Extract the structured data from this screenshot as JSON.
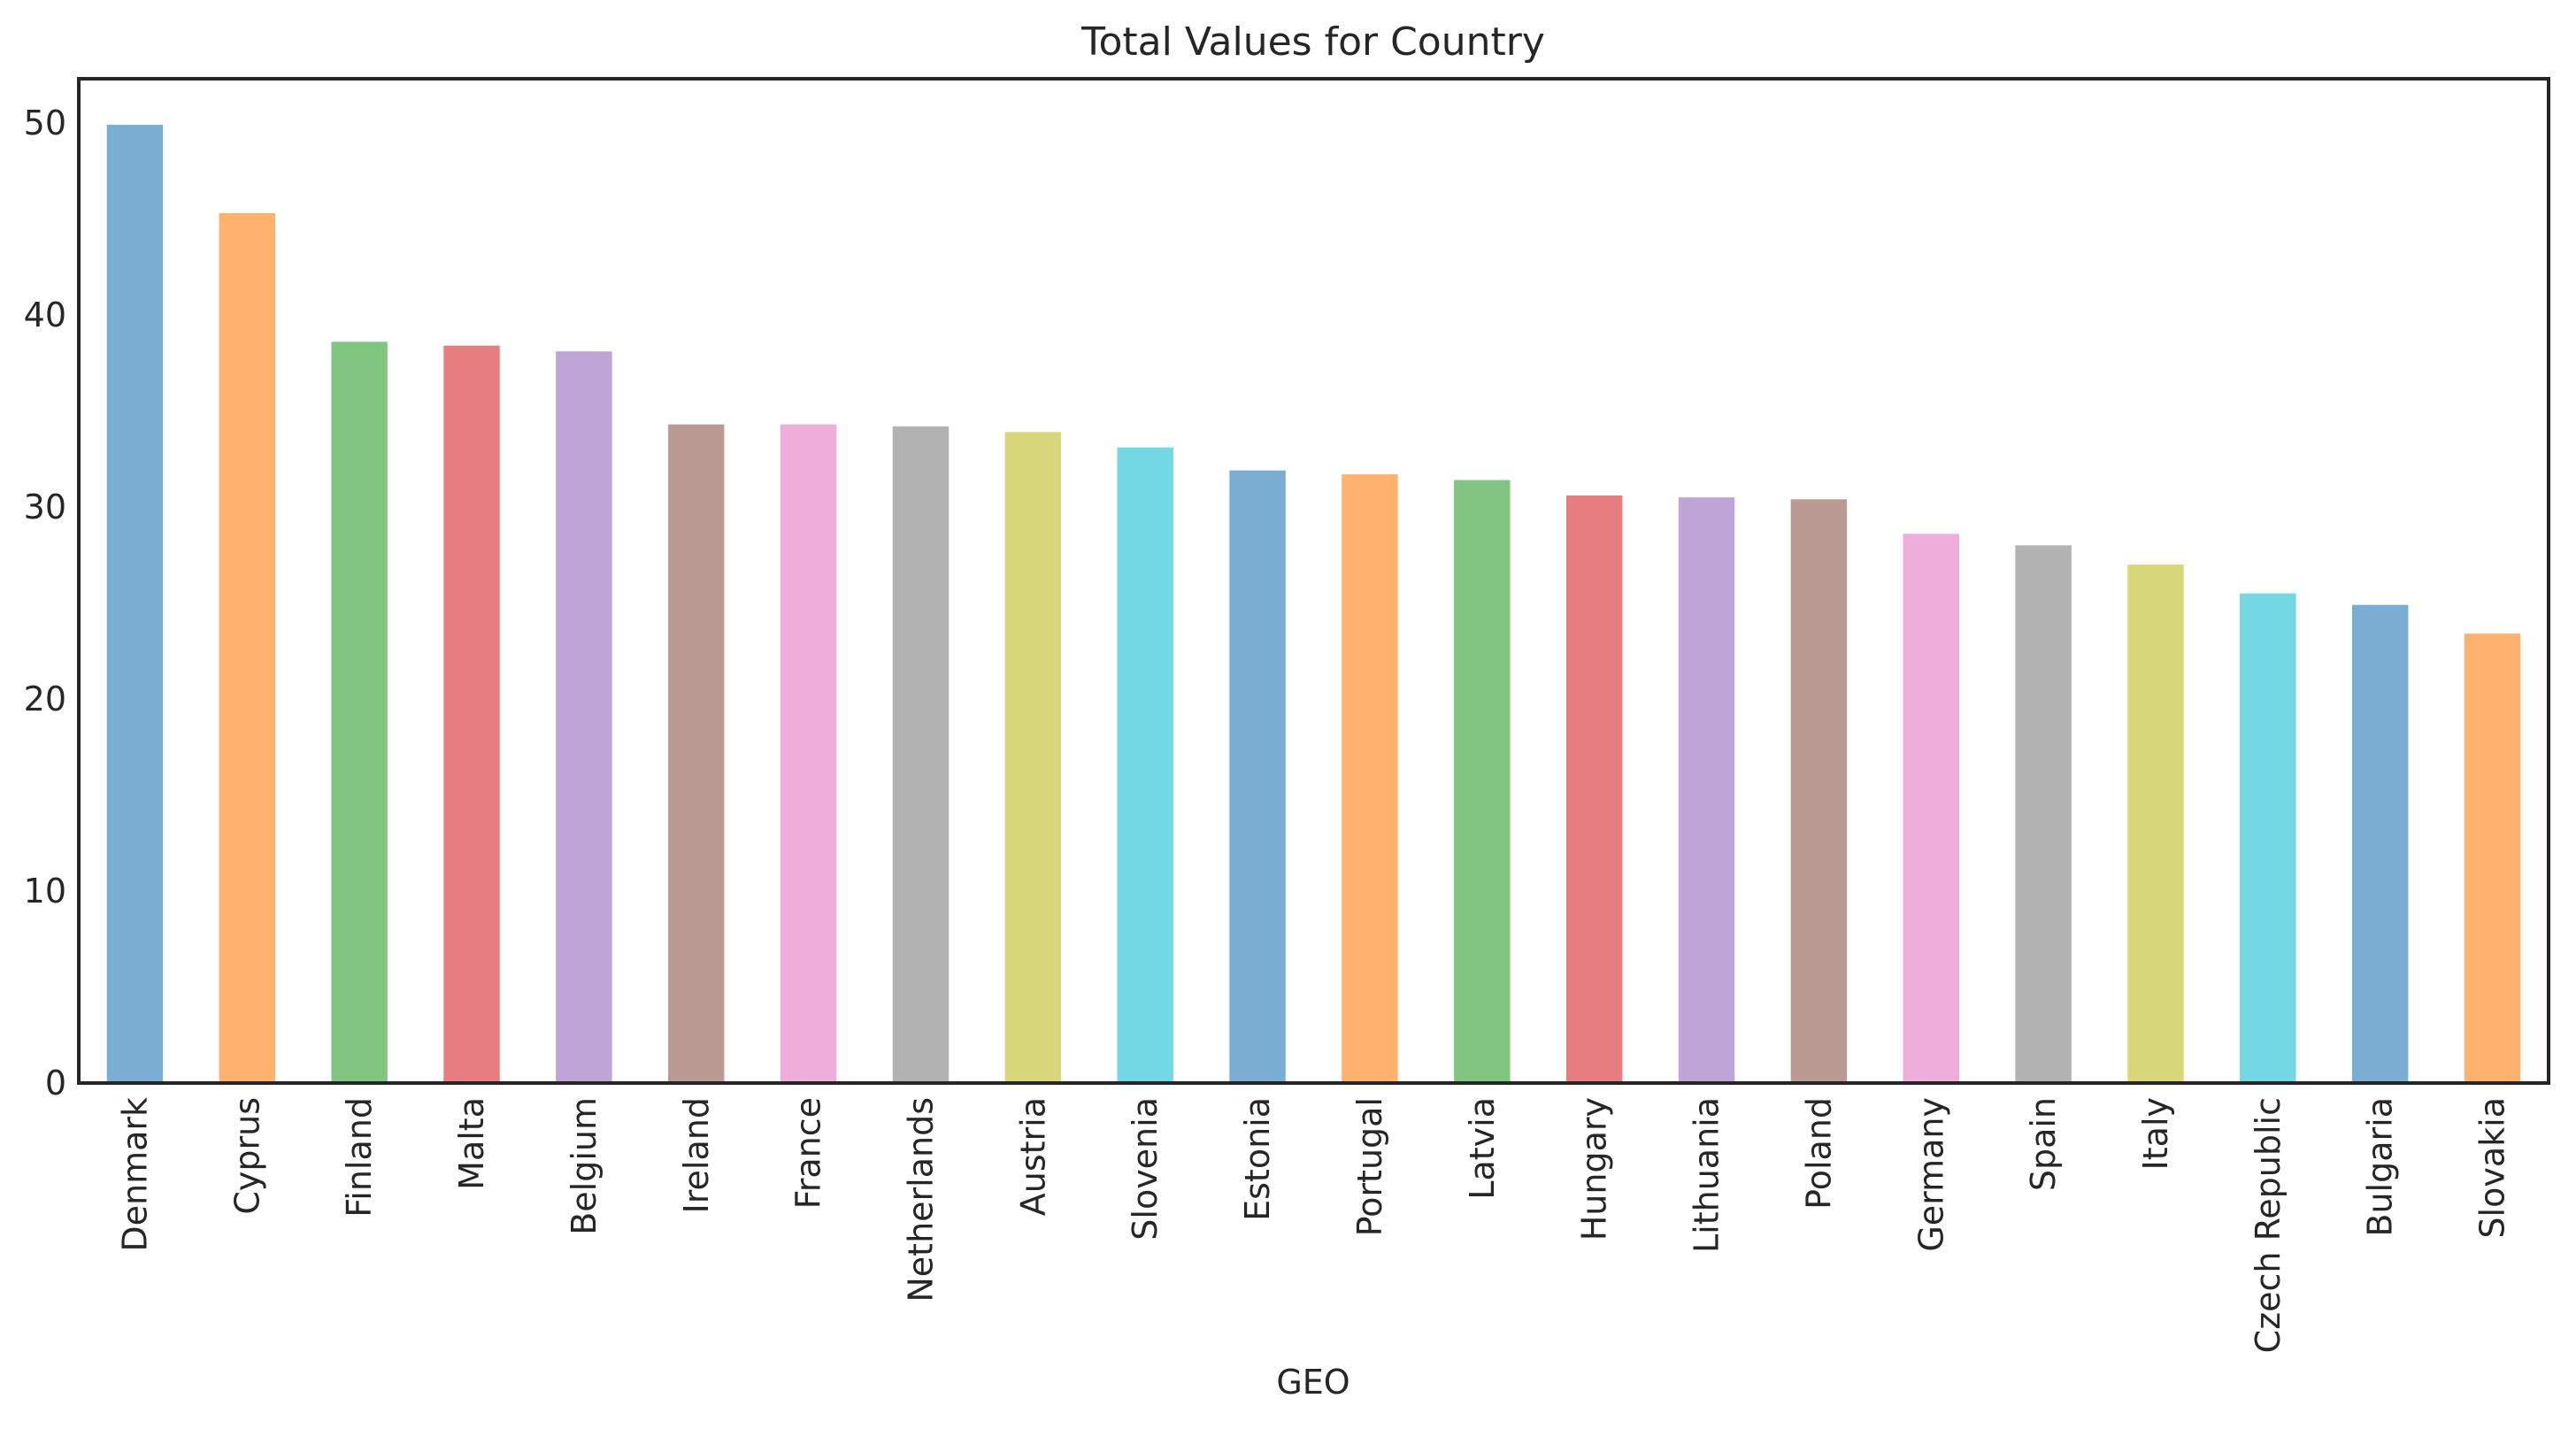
{
  "chart_data": {
    "type": "bar",
    "title": "Total Values for Country",
    "xlabel": "GEO",
    "ylabel": "",
    "ylim": [
      0,
      52.3
    ],
    "yticks": [
      0,
      10,
      20,
      30,
      40,
      50
    ],
    "grid": false,
    "legend": "none",
    "categories": [
      "Denmark",
      "Cyprus",
      "Finland",
      "Malta",
      "Belgium",
      "Ireland",
      "France",
      "Netherlands",
      "Austria",
      "Slovenia",
      "Estonia",
      "Portugal",
      "Latvia",
      "Hungary",
      "Lithuania",
      "Poland",
      "Germany",
      "Spain",
      "Italy",
      "Czech Republic",
      "Bulgaria",
      "Slovakia"
    ],
    "values": [
      49.9,
      45.3,
      38.6,
      38.4,
      38.1,
      34.3,
      34.3,
      34.2,
      33.9,
      33.1,
      31.9,
      31.7,
      31.4,
      30.6,
      30.5,
      30.4,
      28.6,
      28.0,
      27.0,
      25.5,
      24.9,
      23.4
    ],
    "colors": [
      "#1f77b4",
      "#ff7f0e",
      "#2ca02c",
      "#d62728",
      "#9467bd",
      "#8c564b",
      "#e377c2",
      "#7f7f7f",
      "#bcbd22",
      "#17becf"
    ],
    "bar_alpha": 0.6
  }
}
